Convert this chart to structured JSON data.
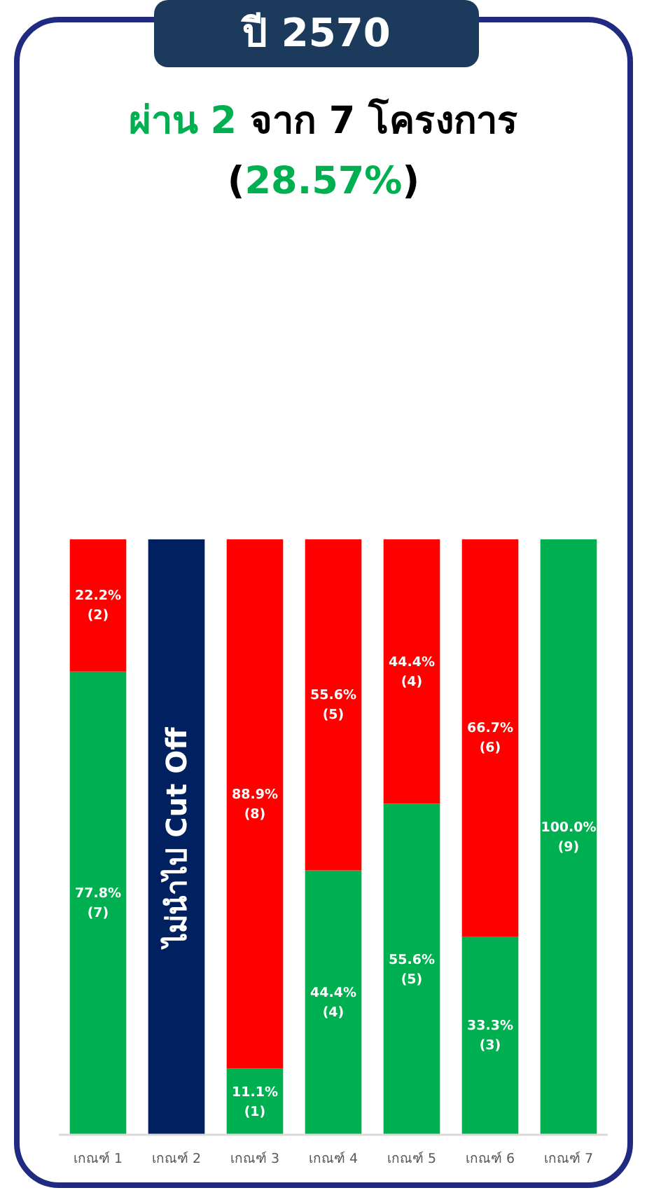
{
  "chart_data": {
    "type": "bar",
    "stacked": true,
    "title": "ปี 2570",
    "subtitle": "ผ่าน 2 จาก 7  โครงการ (28.57%)",
    "categories": [
      "เกณฑ์ 1",
      "เกณฑ์ 2",
      "เกณฑ์ 3",
      "เกณฑ์ 4",
      "เกณฑ์ 5",
      "เกณฑ์ 6",
      "เกณฑ์ 7"
    ],
    "ylim": [
      0,
      100
    ],
    "series": [
      {
        "color": "#00b050",
        "values": [
          77.8,
          null,
          11.1,
          44.4,
          55.6,
          33.3,
          100.0
        ],
        "value_labels": [
          "77.8%\n(7)",
          null,
          "11.1%\n(1)",
          "44.4%\n(4)",
          "55.6%\n(5)",
          "33.3%\n(3)",
          "100.0%\n(9)"
        ]
      },
      {
        "color": "#ff0000",
        "values": [
          22.2,
          null,
          88.9,
          55.6,
          44.4,
          66.7,
          null
        ],
        "value_labels": [
          "22.2%\n(2)",
          null,
          "88.9%\n(8)",
          "55.6%\n(5)",
          "44.4%\n(4)",
          "66.7%\n(6)",
          null
        ]
      },
      {
        "color": "#002060",
        "values": [
          null,
          100,
          null,
          null,
          null,
          null,
          null
        ],
        "value_labels": [
          null,
          "ไม่นำไป Cut Off",
          null,
          null,
          null,
          null,
          null
        ]
      }
    ]
  }
}
